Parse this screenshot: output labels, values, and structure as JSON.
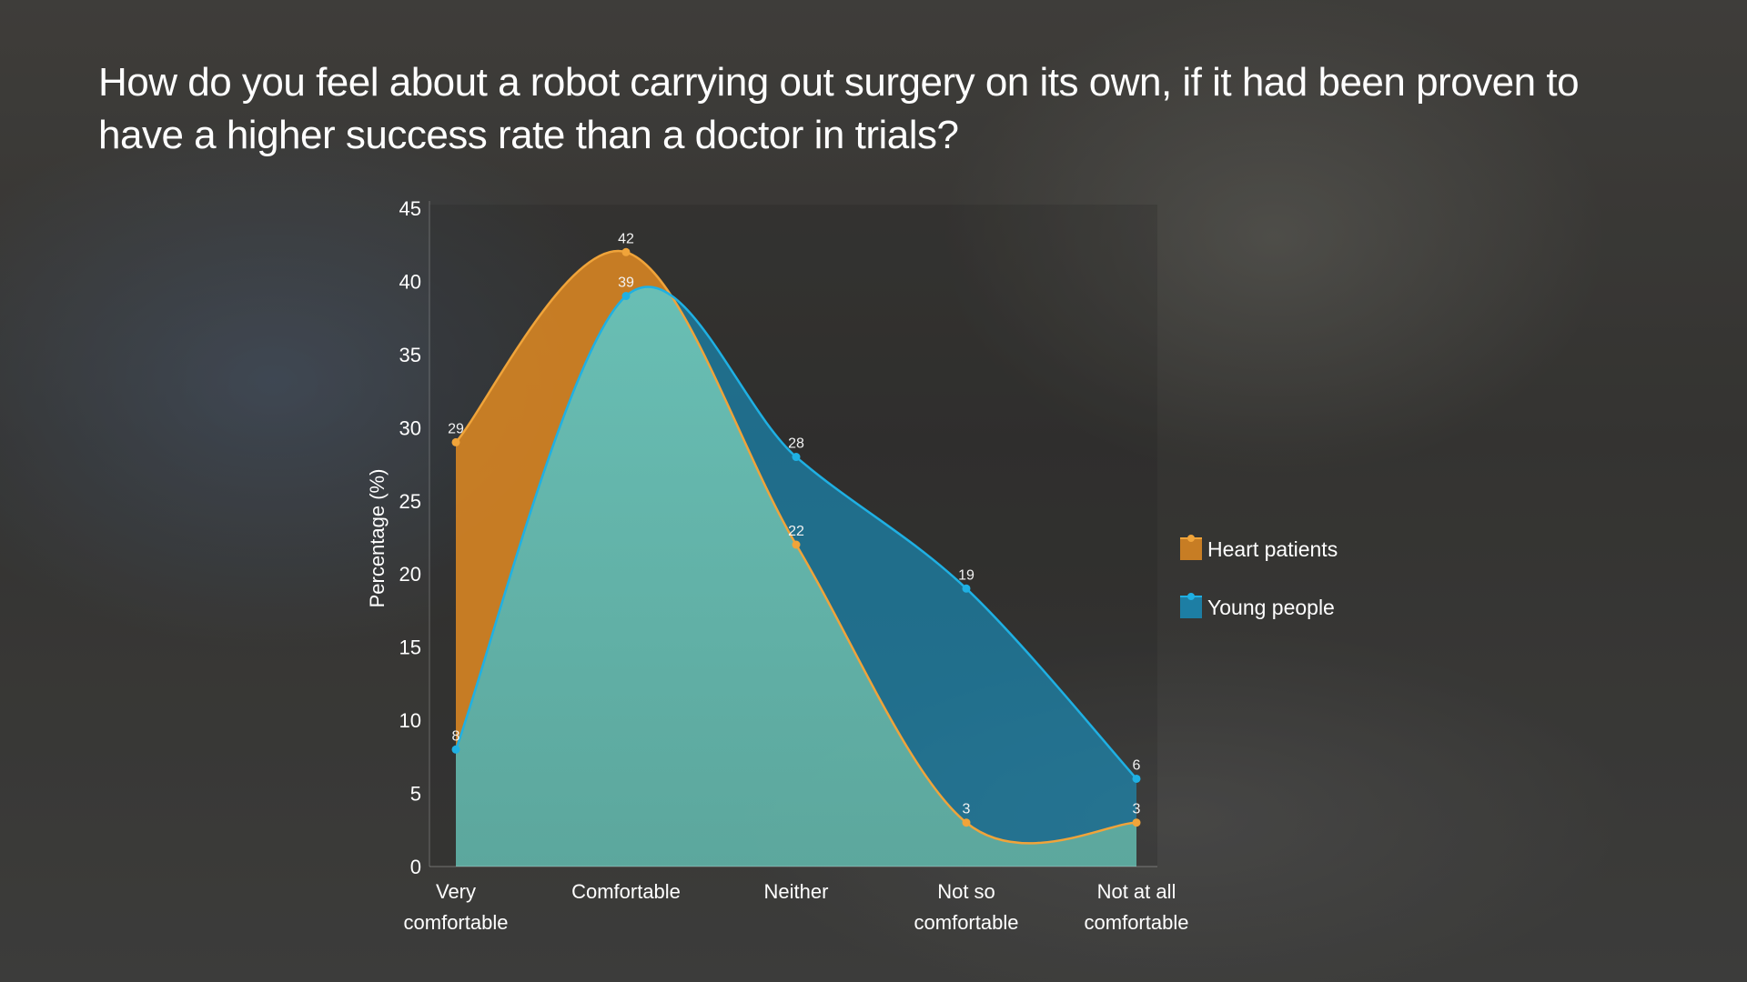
{
  "title": "How do you feel about a robot carrying out surgery on its own, if it had been proven to have a higher success rate than a doctor in trials?",
  "chart_data": {
    "type": "area",
    "categories": [
      [
        "Very",
        "comfortable"
      ],
      [
        "Comfortable"
      ],
      [
        "Neither"
      ],
      [
        "Not so",
        "comfortable"
      ],
      [
        "Not at all",
        "comfortable"
      ]
    ],
    "ylabel": "Percentage (%)",
    "xlabel": "",
    "ylim": [
      0,
      45
    ],
    "yticks": [
      0,
      5,
      10,
      15,
      20,
      25,
      30,
      35,
      40,
      45
    ],
    "grid": false,
    "legend_position": "right",
    "series": [
      {
        "name": "Heart patients",
        "values": [
          29,
          42,
          22,
          3,
          3
        ],
        "color": "#e08a22"
      },
      {
        "name": "Young people",
        "values": [
          8,
          39,
          28,
          19,
          6
        ],
        "color": "#1597c9"
      }
    ]
  }
}
